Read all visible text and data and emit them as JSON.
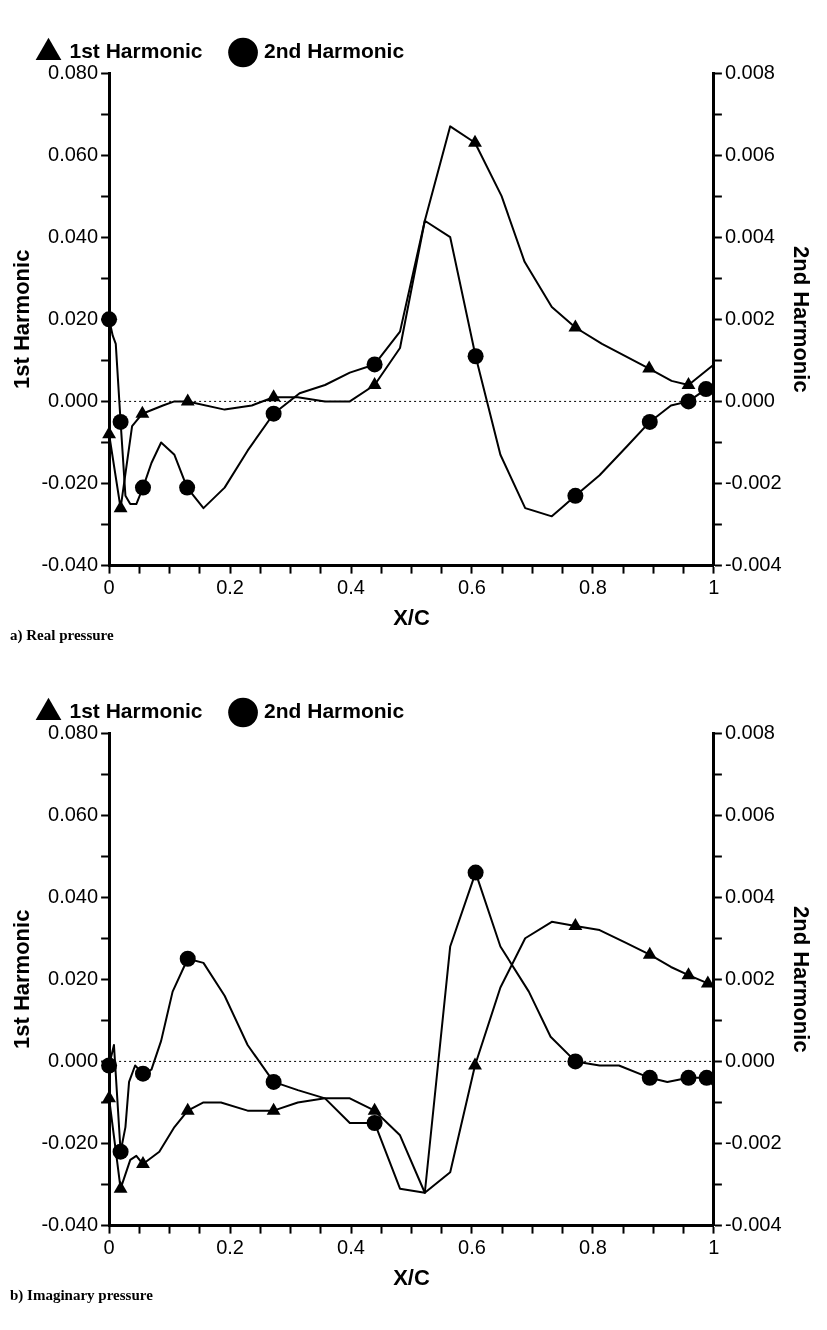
{
  "chart_data": [
    {
      "type": "line",
      "xlabel": "X/C",
      "ylabel": "1st Harmonic",
      "y2label": "2nd Harmonic",
      "annotations": [
        "a) Real pressure"
      ],
      "legend": "top left",
      "grid": false,
      "xlim": [
        0,
        1
      ],
      "ylim": [
        -0.04,
        0.08
      ],
      "y2lim": [
        -0.004,
        0.008
      ],
      "xticks": [
        0,
        {
          "value": 0.05,
          "label": null
        },
        {
          "value": 0.1,
          "label": null
        },
        {
          "value": 0.15,
          "label": null
        },
        0.2,
        {
          "value": 0.25,
          "label": null
        },
        {
          "value": 0.3,
          "label": null
        },
        {
          "value": 0.35,
          "label": null
        },
        0.4,
        {
          "value": 0.45,
          "label": null
        },
        {
          "value": 0.5,
          "label": null
        },
        {
          "value": 0.55,
          "label": null
        },
        0.6,
        {
          "value": 0.65,
          "label": null
        },
        {
          "value": 0.7,
          "label": null
        },
        {
          "value": 0.75,
          "label": null
        },
        0.8,
        {
          "value": 0.85,
          "label": null
        },
        {
          "value": 0.9,
          "label": null
        },
        {
          "value": 0.95,
          "label": null
        },
        1
      ],
      "yticks": [
        {
          "value": -0.04,
          "label": "-0.040"
        },
        {
          "value": -0.03,
          "label": null
        },
        {
          "value": -0.02,
          "label": "-0.020"
        },
        {
          "value": -0.01,
          "label": null
        },
        {
          "value": 0,
          "label": "0.000"
        },
        {
          "value": 0.01,
          "label": null
        },
        {
          "value": 0.02,
          "label": "0.020"
        },
        {
          "value": 0.03,
          "label": null
        },
        {
          "value": 0.04,
          "label": "0.040"
        },
        {
          "value": 0.05,
          "label": null
        },
        {
          "value": 0.06,
          "label": "0.060"
        },
        {
          "value": 0.07,
          "label": null
        },
        {
          "value": 0.08,
          "label": "0.080"
        }
      ],
      "y2ticks": [
        {
          "value": -0.004,
          "label": "-0.004"
        },
        {
          "value": -0.003,
          "label": null
        },
        {
          "value": -0.002,
          "label": "-0.002"
        },
        {
          "value": -0.001,
          "label": null
        },
        {
          "value": 0,
          "label": "0.000"
        },
        {
          "value": 0.001,
          "label": null
        },
        {
          "value": 0.002,
          "label": "0.002"
        },
        {
          "value": 0.003,
          "label": null
        },
        {
          "value": 0.004,
          "label": "0.004"
        },
        {
          "value": 0.005,
          "label": null
        },
        {
          "value": 0.006,
          "label": "0.006"
        },
        {
          "value": 0.007,
          "label": null
        },
        {
          "value": 0.008,
          "label": "0.008"
        }
      ],
      "ref_lines": [
        {
          "axis": "y",
          "value": 0,
          "color": "#000000",
          "line_style": "dotted"
        }
      ],
      "series": [
        {
          "color": "#000000",
          "x": [
            0,
            0.019,
            0.038,
            0.055,
            0.089,
            0.108,
            0.13,
            0.191,
            0.236,
            0.272,
            0.312,
            0.357,
            0.398,
            0.439,
            0.481,
            0.522,
            0.564,
            0.605,
            0.649,
            0.687,
            0.732,
            0.771,
            0.815,
            0.893,
            0.93,
            0.958,
            1
          ],
          "values": [
            -0.008,
            -0.026,
            -0.006,
            -0.003,
            -0.001,
            0,
            0,
            -0.002,
            -0.001,
            0.001,
            0.001,
            0,
            0,
            0.004,
            0.013,
            0.044,
            0.067,
            0.063,
            0.05,
            0.034,
            0.023,
            0.018,
            0.014,
            0.008,
            0.005,
            0.004,
            0.009
          ]
        },
        {
          "name": "1st Harmonic",
          "type": "scatter",
          "color": "#000000",
          "marker": "triangle",
          "x": [
            0,
            0.019,
            0.055,
            0.13,
            0.272,
            0.439,
            0.605,
            0.771,
            0.893,
            0.958
          ],
          "values": [
            -0.008,
            -0.026,
            -0.003,
            0,
            0.001,
            0.004,
            0.063,
            0.018,
            0.008,
            0.004
          ]
        },
        {
          "color": "#000000",
          "axis": "y2",
          "x": [
            0,
            0.006,
            0.011,
            0.019,
            0.027,
            0.035,
            0.045,
            0.056,
            0.07,
            0.086,
            0.108,
            0.129,
            0.156,
            0.191,
            0.229,
            0.272,
            0.315,
            0.357,
            0.398,
            0.439,
            0.481,
            0.522,
            0.564,
            0.606,
            0.647,
            0.688,
            0.732,
            0.771,
            0.811,
            0.856,
            0.894,
            0.929,
            0.958,
            0.987,
            1
          ],
          "values": [
            0.002,
            0.0016,
            0.0014,
            -0.0005,
            -0.0023,
            -0.0025,
            -0.0025,
            -0.0021,
            -0.0015,
            -0.001,
            -0.0013,
            -0.0021,
            -0.0026,
            -0.0021,
            -0.0012,
            -0.0003,
            0.0002,
            0.0004,
            0.0007,
            0.0009,
            0.0017,
            0.0044,
            0.004,
            0.0011,
            -0.0013,
            -0.0026,
            -0.0028,
            -0.0023,
            -0.0018,
            -0.0011,
            -0.0005,
            -0.0001,
            0,
            0.0003,
            0.0002
          ]
        },
        {
          "name": "2nd Harmonic",
          "type": "scatter",
          "color": "#000000",
          "marker": "circle",
          "axis": "y2",
          "x": [
            0,
            0.019,
            0.056,
            0.129,
            0.272,
            0.439,
            0.606,
            0.771,
            0.894,
            0.958,
            0.987
          ],
          "values": [
            0.002,
            -0.0005,
            -0.0021,
            -0.0021,
            -0.0003,
            0.0009,
            0.0011,
            -0.0023,
            -0.0005,
            0,
            0.0003
          ]
        }
      ]
    },
    {
      "type": "line",
      "xlabel": "X/C",
      "ylabel": "1st Harmonic",
      "y2label": "2nd Harmonic",
      "annotations": [
        "b) Imaginary pressure"
      ],
      "legend": "top left",
      "grid": false,
      "xlim": [
        0,
        1
      ],
      "ylim": [
        -0.04,
        0.08
      ],
      "y2lim": [
        -0.004,
        0.008
      ],
      "xticks": [
        0,
        {
          "value": 0.05,
          "label": null
        },
        {
          "value": 0.1,
          "label": null
        },
        {
          "value": 0.15,
          "label": null
        },
        0.2,
        {
          "value": 0.25,
          "label": null
        },
        {
          "value": 0.3,
          "label": null
        },
        {
          "value": 0.35,
          "label": null
        },
        0.4,
        {
          "value": 0.45,
          "label": null
        },
        {
          "value": 0.5,
          "label": null
        },
        {
          "value": 0.55,
          "label": null
        },
        0.6,
        {
          "value": 0.65,
          "label": null
        },
        {
          "value": 0.7,
          "label": null
        },
        {
          "value": 0.75,
          "label": null
        },
        0.8,
        {
          "value": 0.85,
          "label": null
        },
        {
          "value": 0.9,
          "label": null
        },
        {
          "value": 0.95,
          "label": null
        },
        1
      ],
      "yticks": [
        {
          "value": -0.04,
          "label": "-0.040"
        },
        {
          "value": -0.03,
          "label": null
        },
        {
          "value": -0.02,
          "label": "-0.020"
        },
        {
          "value": -0.01,
          "label": null
        },
        {
          "value": 0,
          "label": "0.000"
        },
        {
          "value": 0.01,
          "label": null
        },
        {
          "value": 0.02,
          "label": "0.020"
        },
        {
          "value": 0.03,
          "label": null
        },
        {
          "value": 0.04,
          "label": "0.040"
        },
        {
          "value": 0.05,
          "label": null
        },
        {
          "value": 0.06,
          "label": "0.060"
        },
        {
          "value": 0.07,
          "label": null
        },
        {
          "value": 0.08,
          "label": "0.080"
        }
      ],
      "y2ticks": [
        {
          "value": -0.004,
          "label": "-0.004"
        },
        {
          "value": -0.003,
          "label": null
        },
        {
          "value": -0.002,
          "label": "-0.002"
        },
        {
          "value": -0.001,
          "label": null
        },
        {
          "value": 0,
          "label": "0.000"
        },
        {
          "value": 0.001,
          "label": null
        },
        {
          "value": 0.002,
          "label": "0.002"
        },
        {
          "value": 0.003,
          "label": null
        },
        {
          "value": 0.004,
          "label": "0.004"
        },
        {
          "value": 0.005,
          "label": null
        },
        {
          "value": 0.006,
          "label": "0.006"
        },
        {
          "value": 0.007,
          "label": null
        },
        {
          "value": 0.008,
          "label": "0.008"
        }
      ],
      "ref_lines": [
        {
          "axis": "y",
          "value": 0,
          "color": "#000000",
          "line_style": "dotted"
        }
      ],
      "series": [
        {
          "color": "#000000",
          "x": [
            0,
            0.019,
            0.035,
            0.045,
            0.056,
            0.083,
            0.108,
            0.13,
            0.156,
            0.185,
            0.229,
            0.272,
            0.312,
            0.357,
            0.398,
            0.439,
            0.481,
            0.522,
            0.564,
            0.605,
            0.647,
            0.688,
            0.732,
            0.771,
            0.811,
            0.853,
            0.894,
            0.929,
            0.958,
            0.99,
            1
          ],
          "values": [
            -0.009,
            -0.031,
            -0.024,
            -0.023,
            -0.025,
            -0.022,
            -0.016,
            -0.012,
            -0.01,
            -0.01,
            -0.012,
            -0.012,
            -0.01,
            -0.009,
            -0.009,
            -0.012,
            -0.018,
            -0.032,
            -0.027,
            -0.001,
            0.018,
            0.03,
            0.034,
            0.033,
            0.032,
            0.029,
            0.026,
            0.023,
            0.021,
            0.019,
            0.018
          ]
        },
        {
          "name": "1st Harmonic",
          "type": "scatter",
          "color": "#000000",
          "marker": "triangle",
          "x": [
            0,
            0.019,
            0.056,
            0.13,
            0.272,
            0.439,
            0.605,
            0.771,
            0.894,
            0.958,
            0.99
          ],
          "values": [
            -0.009,
            -0.031,
            -0.025,
            -0.012,
            -0.012,
            -0.012,
            -0.001,
            0.033,
            0.026,
            0.021,
            0.019
          ]
        },
        {
          "color": "#000000",
          "axis": "y2",
          "x": [
            0,
            0.008,
            0.019,
            0.027,
            0.033,
            0.043,
            0.056,
            0.07,
            0.086,
            0.105,
            0.13,
            0.156,
            0.191,
            0.229,
            0.272,
            0.312,
            0.357,
            0.398,
            0.439,
            0.481,
            0.522,
            0.564,
            0.606,
            0.647,
            0.694,
            0.73,
            0.771,
            0.811,
            0.843,
            0.894,
            0.923,
            0.958,
            0.988,
            1
          ],
          "values": [
            -0.0001,
            0.0004,
            -0.0022,
            -0.0016,
            -0.0005,
            -0.0001,
            -0.0003,
            -0.0002,
            0.0005,
            0.0017,
            0.0025,
            0.0024,
            0.0016,
            0.0004,
            -0.0005,
            -0.0007,
            -0.0009,
            -0.0015,
            -0.0015,
            -0.0031,
            -0.0032,
            0.0028,
            0.0046,
            0.0028,
            0.0017,
            0.0006,
            0,
            -0.0001,
            -0.0001,
            -0.0004,
            -0.0005,
            -0.0004,
            -0.0004,
            -0.0006
          ]
        },
        {
          "name": "2nd Harmonic",
          "type": "scatter",
          "color": "#000000",
          "marker": "circle",
          "axis": "y2",
          "x": [
            0,
            0.019,
            0.056,
            0.13,
            0.272,
            0.439,
            0.606,
            0.771,
            0.894,
            0.958,
            0.988
          ],
          "values": [
            -0.0001,
            -0.0022,
            -0.0003,
            0.0025,
            -0.0005,
            -0.0015,
            0.0046,
            0,
            -0.0004,
            -0.0004,
            -0.0004
          ]
        }
      ]
    }
  ]
}
